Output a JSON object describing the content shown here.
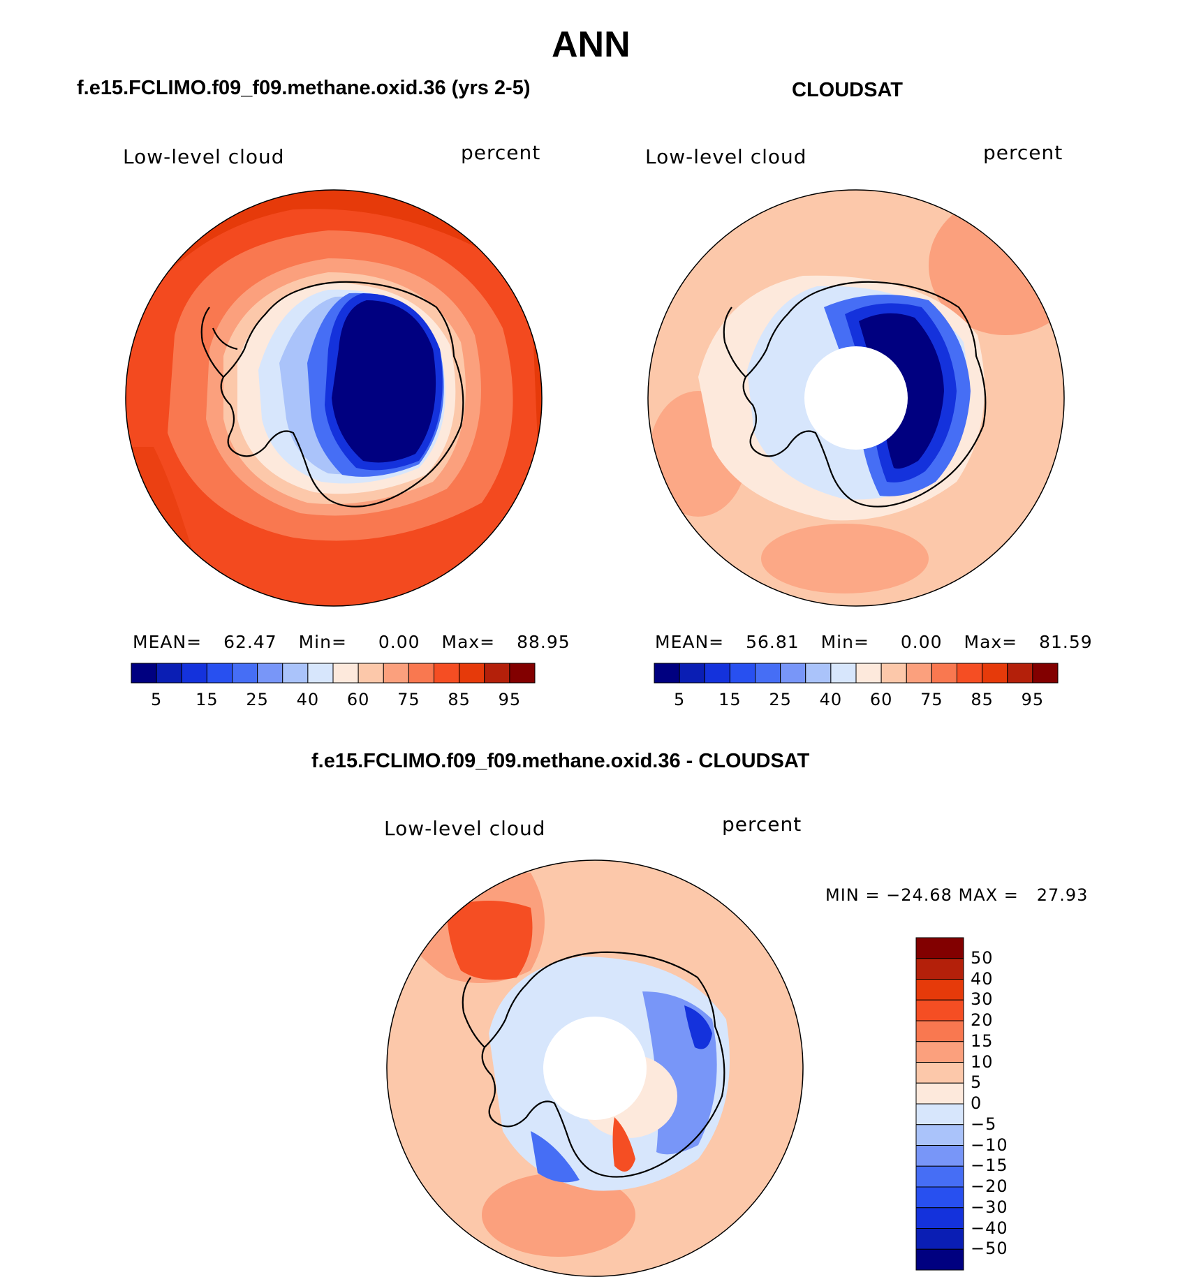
{
  "season": "ANN",
  "panels": [
    {
      "header": "f.e15.FCLIMO.f09_f09.methane.oxid.36 (yrs 2-5)",
      "variable": "Low-level cloud",
      "units": "percent",
      "stats": {
        "mean_label": "MEAN=",
        "mean": "62.47",
        "min_label": "Min=",
        "min": "0.00",
        "max_label": "Max=",
        "max": "88.95"
      },
      "colorbar_ticks": [
        "5",
        "15",
        "25",
        "40",
        "60",
        "75",
        "85",
        "95"
      ]
    },
    {
      "header": "CLOUDSAT",
      "variable": "Low-level cloud",
      "units": "percent",
      "stats": {
        "mean_label": "MEAN=",
        "mean": "56.81",
        "min_label": "Min=",
        "min": "0.00",
        "max_label": "Max=",
        "max": "81.59"
      },
      "colorbar_ticks": [
        "5",
        "15",
        "25",
        "40",
        "60",
        "75",
        "85",
        "95"
      ]
    }
  ],
  "diff": {
    "header": "f.e15.FCLIMO.f09_f09.methane.oxid.36 - CLOUDSAT",
    "variable": "Low-level cloud",
    "units": "percent",
    "minmax": "MIN = −24.68 MAX =   27.93",
    "colorbar_ticks": [
      "50",
      "40",
      "30",
      "20",
      "15",
      "10",
      "5",
      "0",
      "−5",
      "−10",
      "−15",
      "−20",
      "−30",
      "−40",
      "−50"
    ]
  },
  "palette": [
    "#000080",
    "#0a1eb4",
    "#1432dc",
    "#2850f0",
    "#466ef5",
    "#7896f8",
    "#aac3fa",
    "#d7e6fc",
    "#fde9dc",
    "#fcc8aa",
    "#fba07d",
    "#f97850",
    "#f54e23",
    "#e63a0a",
    "#b4200a",
    "#820000"
  ],
  "fields": {
    "ocean_color": "#e63a0a",
    "ocean_inner_color": "#f54e23",
    "cloudsat_ocean_color": "#fcc8aa",
    "diff_ocean_color": "#fcc8aa"
  }
}
